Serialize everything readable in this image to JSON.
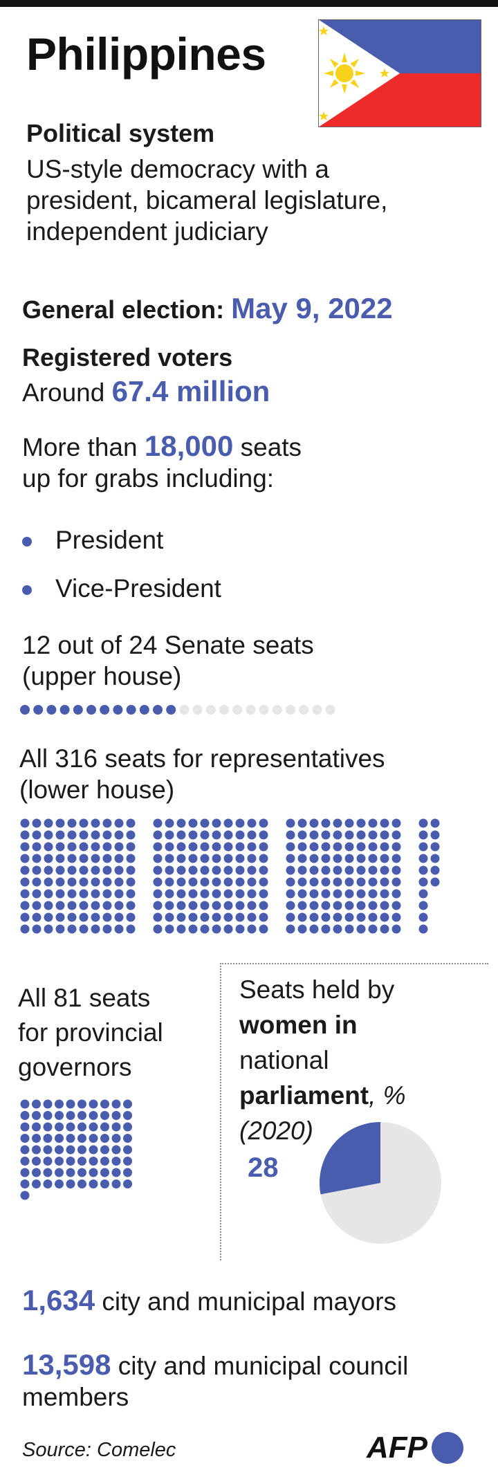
{
  "title": "Philippines",
  "political_system": {
    "heading": "Political system",
    "lines": [
      "US-style democracy with a",
      "president, bicameral legislature,",
      "independent judiciary"
    ]
  },
  "election": {
    "label": "General election:",
    "date": "May 9, 2022"
  },
  "voters": {
    "heading": "Registered voters",
    "prefix": "Around",
    "value": "67.4 million"
  },
  "seats": {
    "prefix": "More than",
    "value": "18,000",
    "suffix": "seats",
    "line2": "up for grabs including:"
  },
  "bullets": [
    "President",
    "Vice-President"
  ],
  "senate": {
    "line1": "12 out of 24 Senate seats",
    "line2": "(upper house)",
    "total": 24,
    "up": 12
  },
  "representatives": {
    "line1": "All 316 seats for representatives",
    "line2": "(lower house)",
    "total": 316
  },
  "governors": {
    "line1": "All 81 seats",
    "line2": "for provincial",
    "line3": "governors",
    "total": 81
  },
  "women": {
    "line1": "Seats held by",
    "line2": "women in",
    "line3": "national",
    "line4_bold": "parliament",
    "line4_rest": ", %",
    "line5": "(2020)",
    "value_label": "28",
    "percent": 28
  },
  "mayors": {
    "value": "1,634",
    "text": "city and municipal mayors"
  },
  "council": {
    "value": "13,598",
    "text": "city and municipal council",
    "line2": "members"
  },
  "source": "Source: Comelec",
  "logo": "AFP",
  "colors": {
    "accent": "#4a5cad",
    "light": "#e6e6e6",
    "flag_blue": "#4a5cad",
    "flag_red": "#ee2a2a",
    "flag_yellow": "#f6d21a"
  }
}
